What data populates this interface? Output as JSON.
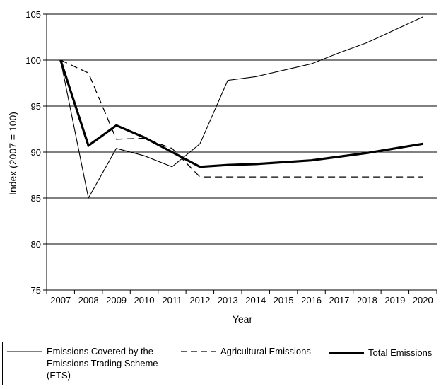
{
  "chart_data": {
    "type": "line",
    "title": "",
    "xlabel": "Year",
    "ylabel": "Index (2007 = 100)",
    "ylim": [
      75,
      105
    ],
    "yticks": [
      75,
      80,
      85,
      90,
      95,
      100,
      105
    ],
    "grid": "horizontal",
    "legend_position": "bottom",
    "categories": [
      "2007",
      "2008",
      "2009",
      "2010",
      "2011",
      "2012",
      "2013",
      "2014",
      "2015",
      "2016",
      "2017",
      "2018",
      "2019",
      "2020"
    ],
    "series": [
      {
        "name": "Emissions Covered by the Emissions Trading Scheme (ETS)",
        "style": "thin",
        "values": [
          100,
          85.0,
          90.4,
          89.6,
          88.4,
          90.9,
          97.8,
          98.2,
          98.9,
          99.6,
          100.8,
          101.9,
          103.3,
          104.7
        ]
      },
      {
        "name": "Agricultural Emissions",
        "style": "dashed",
        "values": [
          100,
          98.6,
          91.4,
          91.5,
          90.4,
          87.3,
          87.3,
          87.3,
          87.3,
          87.3,
          87.3,
          87.3,
          87.3,
          87.3
        ]
      },
      {
        "name": "Total Emissions",
        "style": "thick",
        "values": [
          100,
          90.7,
          92.9,
          91.6,
          90.0,
          88.4,
          88.6,
          88.7,
          88.9,
          89.1,
          89.5,
          89.9,
          90.4,
          90.9
        ]
      }
    ]
  },
  "legend": {
    "ets_line1": "Emissions Covered by the",
    "ets_line2": "Emissions Trading Scheme",
    "ets_line3": "(ETS)",
    "agri": "Agricultural Emissions",
    "total": "Total Emissions"
  }
}
